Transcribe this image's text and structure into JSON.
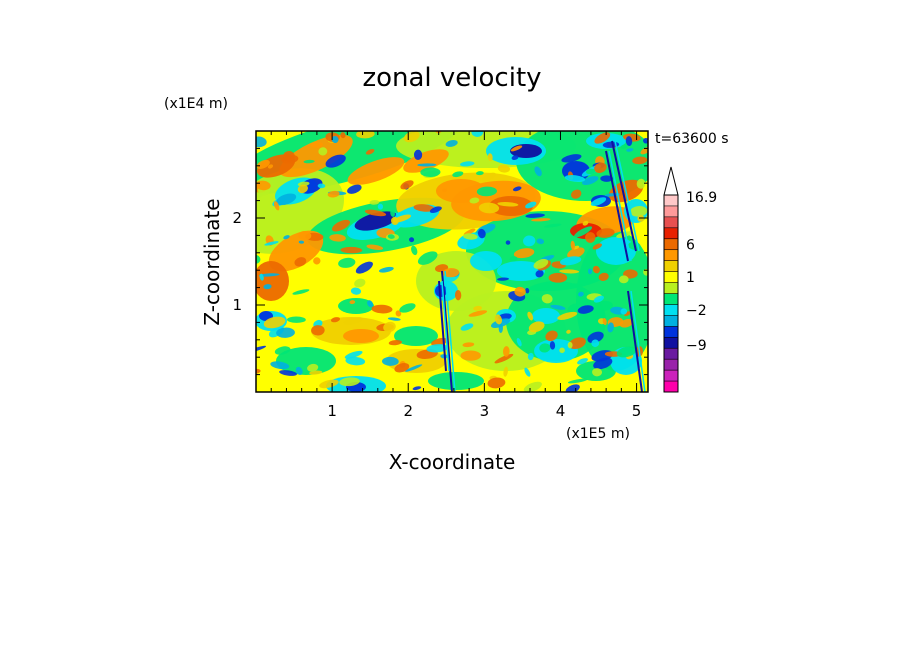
{
  "chart_data": {
    "type": "heatmap",
    "title": "zonal velocity",
    "xlabel": "X-coordinate",
    "ylabel": "Z-coordinate",
    "x_scale_label": "(x1E5 m)",
    "y_scale_label": "(x1E4 m)",
    "time_label": "t=63600 s",
    "xlim": [
      0,
      5.15
    ],
    "ylim": [
      0,
      3
    ],
    "x_ticks": [
      1,
      2,
      3,
      4,
      5
    ],
    "x_tick_labels": [
      "1",
      "2",
      "3",
      "4",
      "5"
    ],
    "y_ticks": [
      1,
      2
    ],
    "y_tick_labels": [
      "1",
      "2"
    ],
    "colorbar": {
      "levels": [
        "16.9",
        "6",
        "1",
        "-2",
        "-9"
      ],
      "level_labels": [
        "16.9",
        "6",
        "1",
        "−2",
        "−9"
      ],
      "extend": "max",
      "colors": [
        "#ff00aa",
        "#cc22bb",
        "#9922aa",
        "#6a1aa0",
        "#1010a0",
        "#0033dd",
        "#00b0e0",
        "#00e0f0",
        "#00e676",
        "#b8f020",
        "#ffff00",
        "#f0d000",
        "#ff9800",
        "#ec6a00",
        "#e82000",
        "#e85050",
        "#ff9a9a",
        "#ffc8c8"
      ]
    }
  }
}
